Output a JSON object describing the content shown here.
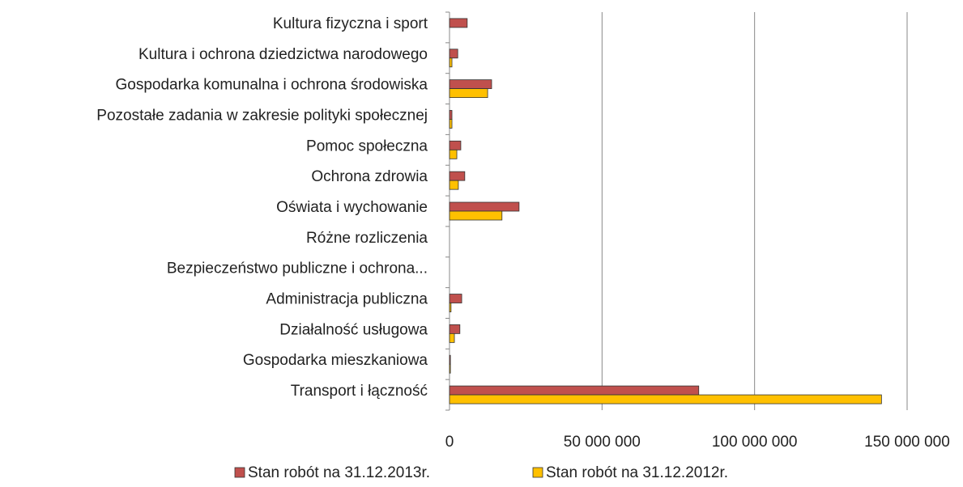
{
  "chart_data": {
    "type": "hbar",
    "categories": [
      "Kultura fizyczna i sport",
      "Kultura i ochrona dziedzictwa narodowego",
      "Gospodarka komunalna i ochrona środowiska",
      "Pozostałe zadania w zakresie polityki społecznej",
      "Pomoc społeczna",
      "Ochrona zdrowia",
      "Oświata i wychowanie",
      "Różne rozliczenia",
      "Bezpieczeństwo publiczne i ochrona...",
      "Administracja publiczna",
      "Działalność usługowa",
      "Gospodarka mieszkaniowa",
      "Transport i łączność"
    ],
    "series": [
      {
        "name": "Stan robót na 31.12.2013r.",
        "color": "#c0504d",
        "values": [
          5800000,
          2700000,
          13800000,
          800000,
          3700000,
          5000000,
          22800000,
          0,
          0,
          4000000,
          3400000,
          300000,
          81700000
        ]
      },
      {
        "name": "Stan robót na 31.12.2012r.",
        "color": "#ffc000",
        "values": [
          0,
          800000,
          12500000,
          800000,
          2400000,
          2900000,
          17200000,
          0,
          0,
          500000,
          1600000,
          300000,
          141600000
        ]
      }
    ],
    "xlim": [
      0,
      150000000
    ],
    "xticks": [
      0,
      {
        "value": 50000000,
        "label": "50 000 000"
      },
      {
        "value": 100000000,
        "label": "100 000 000"
      },
      {
        "value": 150000000,
        "label": "150 000 000"
      }
    ],
    "grid": true,
    "legend": "bottom"
  }
}
